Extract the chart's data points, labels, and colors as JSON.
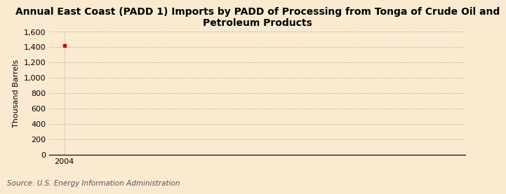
{
  "title_line1": "Annual East Coast (PADD 1) Imports by PADD of Processing from Tonga of Crude Oil and",
  "title_line2": "Petroleum Products",
  "ylabel": "Thousand Barrels",
  "source": "Source: U.S. Energy Information Administration",
  "background_color": "#faebd0",
  "data_x": [
    2004
  ],
  "data_y": [
    1418
  ],
  "marker_color": "#cc0000",
  "ylim": [
    0,
    1600
  ],
  "yticks": [
    0,
    200,
    400,
    600,
    800,
    1000,
    1200,
    1400,
    1600
  ],
  "xlim": [
    2003.4,
    2020
  ],
  "xticks": [
    2004
  ],
  "grid_color": "#bbbbbb",
  "grid_linestyle": "--",
  "axis_color": "#222222",
  "title_fontsize": 10,
  "label_fontsize": 8,
  "tick_fontsize": 8,
  "source_fontsize": 7.5
}
